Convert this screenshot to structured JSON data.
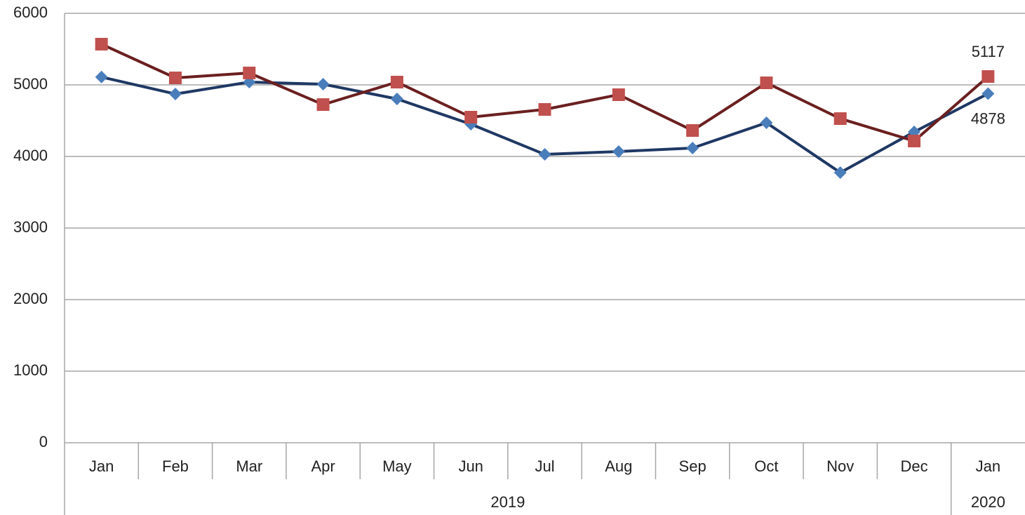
{
  "chart_data": {
    "type": "line",
    "category_groups": [
      {
        "label": "2019",
        "categories": [
          "Jan",
          "Feb",
          "Mar",
          "Apr",
          "May",
          "Jun",
          "Jul",
          "Aug",
          "Sep",
          "Oct",
          "Nov",
          "Dec"
        ]
      },
      {
        "label": "2020",
        "categories": [
          "Jan"
        ]
      }
    ],
    "series": [
      {
        "color": "#4a7ebb",
        "line_color": "#1f3864",
        "marker": "diamond",
        "label_last": true,
        "label_side": "below",
        "values": [
          5110,
          4873,
          5039,
          5010,
          4804,
          4451,
          4029,
          4069,
          4118,
          4471,
          3775,
          4343,
          4878
        ]
      },
      {
        "color": "#c0504d",
        "line_color": "#6b1f1f",
        "marker": "square",
        "label_last": true,
        "label_side": "above",
        "values": [
          5569,
          5098,
          5167,
          4725,
          5039,
          4549,
          4657,
          4863,
          4363,
          5029,
          4529,
          4216,
          5117
        ]
      }
    ],
    "ylim": [
      0,
      6000
    ],
    "yticks": [
      0,
      1000,
      2000,
      3000,
      4000,
      5000,
      6000
    ],
    "grid": true
  }
}
